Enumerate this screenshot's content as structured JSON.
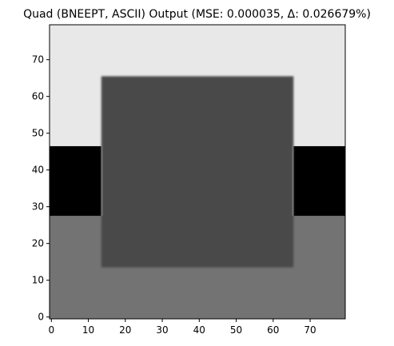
{
  "chart_data": {
    "type": "heatmap",
    "title": "Quad (BNEEPT, ASCII) Output (MSE: 0.000035, Δ: 0.026679%)",
    "xlabel": "",
    "ylabel": "",
    "xlim": [
      0,
      80
    ],
    "ylim": [
      0,
      80
    ],
    "colormap": "gray",
    "grid": false,
    "x_ticks": [
      0,
      10,
      20,
      30,
      40,
      50,
      60,
      70
    ],
    "y_ticks": [
      0,
      10,
      20,
      30,
      40,
      50,
      60,
      70
    ],
    "x_tick_labels": [
      "0",
      "10",
      "20",
      "30",
      "40",
      "50",
      "60",
      "70"
    ],
    "y_tick_labels": [
      "0",
      "10",
      "20",
      "30",
      "40",
      "50",
      "60",
      "70"
    ],
    "regions": [
      {
        "name": "background-lower",
        "x": [
          0,
          80
        ],
        "y": [
          0,
          28
        ],
        "gray": "#737373"
      },
      {
        "name": "left-dark-band",
        "x": [
          0,
          14
        ],
        "y": [
          28,
          47
        ],
        "gray": "#000000"
      },
      {
        "name": "right-dark-band",
        "x": [
          66,
          80
        ],
        "y": [
          28,
          47
        ],
        "gray": "#000000"
      },
      {
        "name": "background-upper",
        "x": [
          0,
          80
        ],
        "y": [
          47,
          80
        ],
        "gray": "#e8e8e8"
      },
      {
        "name": "central-square",
        "x": [
          14,
          66
        ],
        "y": [
          14,
          66
        ],
        "gray": "#4a4a4a"
      }
    ]
  }
}
